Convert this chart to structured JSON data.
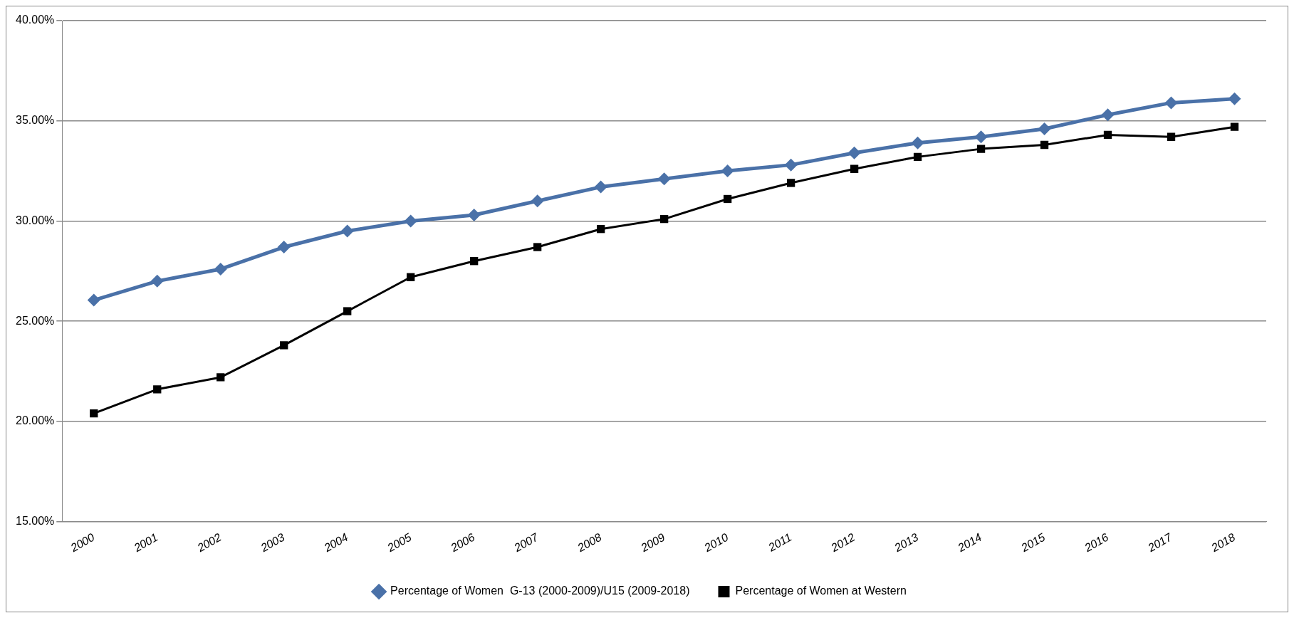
{
  "chart_data": {
    "type": "line",
    "categories": [
      "2000",
      "2001",
      "2002",
      "2003",
      "2004",
      "2005",
      "2006",
      "2007",
      "2008",
      "2009",
      "2010",
      "2011",
      "2012",
      "2013",
      "2014",
      "2015",
      "2016",
      "2017",
      "2018"
    ],
    "series": [
      {
        "name": "Percentage of Women  G-13 (2000-2009)/U15 (2009-2018)",
        "color": "#4a71a8",
        "marker": "diamond",
        "values": [
          26.05,
          27.0,
          27.6,
          28.7,
          29.5,
          30.0,
          30.3,
          31.0,
          31.7,
          32.1,
          32.5,
          32.8,
          33.4,
          33.9,
          34.2,
          34.6,
          35.3,
          35.9,
          36.1
        ]
      },
      {
        "name": "Percentage of Women at Western",
        "color": "#000000",
        "marker": "square",
        "values": [
          20.4,
          21.6,
          22.2,
          23.8,
          25.5,
          27.2,
          28.0,
          28.7,
          29.6,
          30.1,
          31.1,
          31.9,
          32.6,
          33.2,
          33.6,
          33.8,
          34.3,
          34.2,
          34.7
        ]
      }
    ],
    "ylim": [
      15,
      40
    ],
    "yticks": [
      {
        "value": 15,
        "label": "15.00%"
      },
      {
        "value": 20,
        "label": "20.00%"
      },
      {
        "value": 25,
        "label": "25.00%"
      },
      {
        "value": 30,
        "label": "30.00%"
      },
      {
        "value": 35,
        "label": "35.00%"
      },
      {
        "value": 40,
        "label": "40.00%"
      }
    ],
    "grid": "y",
    "legend": "bottom"
  }
}
